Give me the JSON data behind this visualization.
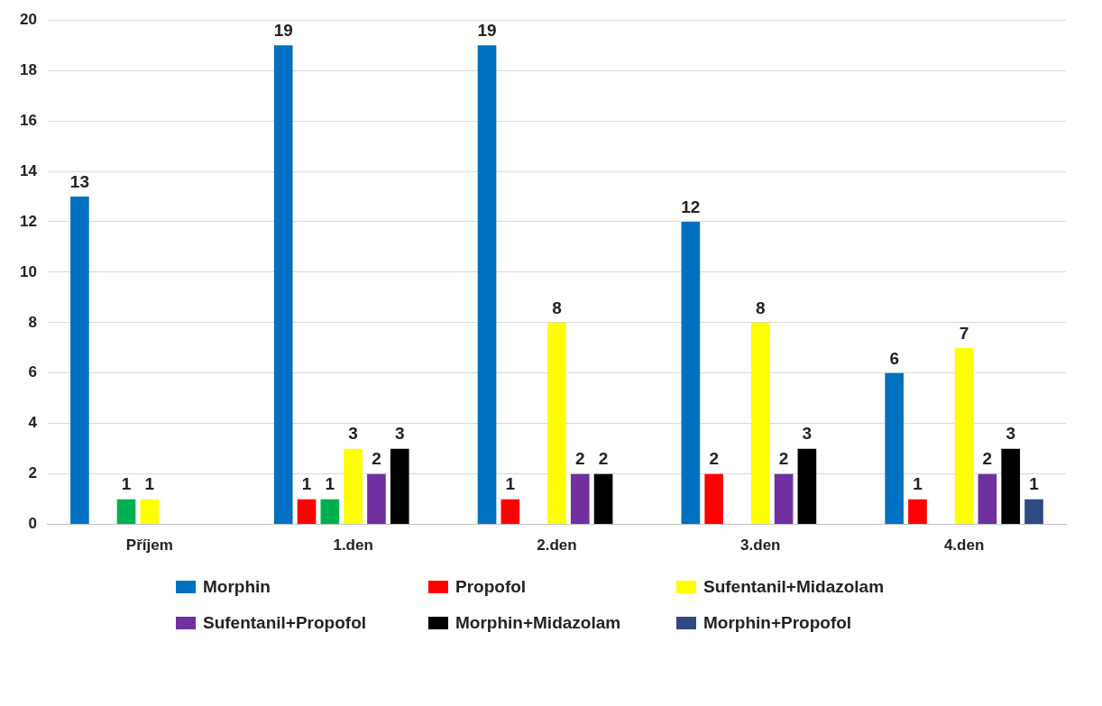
{
  "chart_data": {
    "type": "bar",
    "categories": [
      "Příjem",
      "1.den",
      "2.den",
      "3.den",
      "4.den"
    ],
    "series": [
      {
        "name": "Morphin",
        "color": "#0070c0",
        "values": [
          13,
          19,
          19,
          12,
          6
        ]
      },
      {
        "name": "Propofol",
        "color": "#ff0000",
        "values": [
          null,
          1,
          1,
          2,
          1
        ]
      },
      {
        "color": "#00b050",
        "values": [
          1,
          1,
          null,
          null,
          null
        ]
      },
      {
        "name": "Sufentanil+Midazolam",
        "color": "#ffff00",
        "values": [
          1,
          3,
          8,
          8,
          7
        ]
      },
      {
        "name": "Sufentanil+Propofol",
        "color": "#7030a0",
        "values": [
          null,
          2,
          2,
          2,
          2
        ]
      },
      {
        "name": "Morphin+Midazolam",
        "color": "#000000",
        "values": [
          null,
          3,
          2,
          3,
          3
        ]
      },
      {
        "name": "Morphin+Propofol",
        "color": "#2f4a7e",
        "values": [
          null,
          null,
          null,
          null,
          1
        ]
      }
    ],
    "ylim": [
      0,
      20
    ],
    "yticks": [
      0,
      2,
      4,
      6,
      8,
      10,
      12,
      14,
      16,
      18,
      20
    ],
    "grid": "y",
    "data_labels": true,
    "legend": "bottom"
  }
}
